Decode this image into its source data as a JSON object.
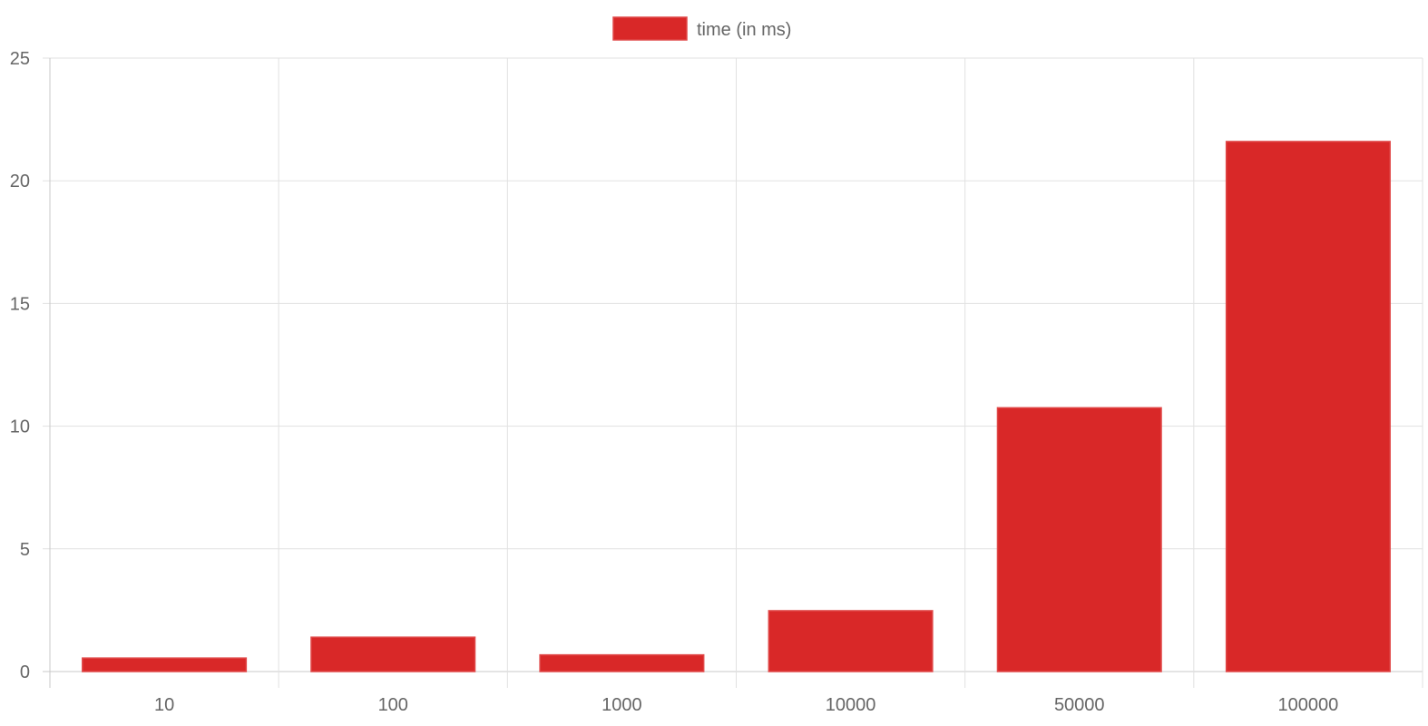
{
  "chart_data": {
    "type": "bar",
    "categories": [
      "10",
      "100",
      "1000",
      "10000",
      "50000",
      "100000"
    ],
    "series": [
      {
        "name": "time (in ms)",
        "values": [
          0.55,
          1.4,
          0.68,
          2.48,
          10.75,
          21.6
        ],
        "color": "#d92828"
      }
    ],
    "title": "",
    "xlabel": "",
    "ylabel": "",
    "ylim": [
      0,
      25
    ],
    "yticks": [
      0,
      5,
      10,
      15,
      20,
      25
    ],
    "grid": true,
    "legend_position": "top-center"
  }
}
